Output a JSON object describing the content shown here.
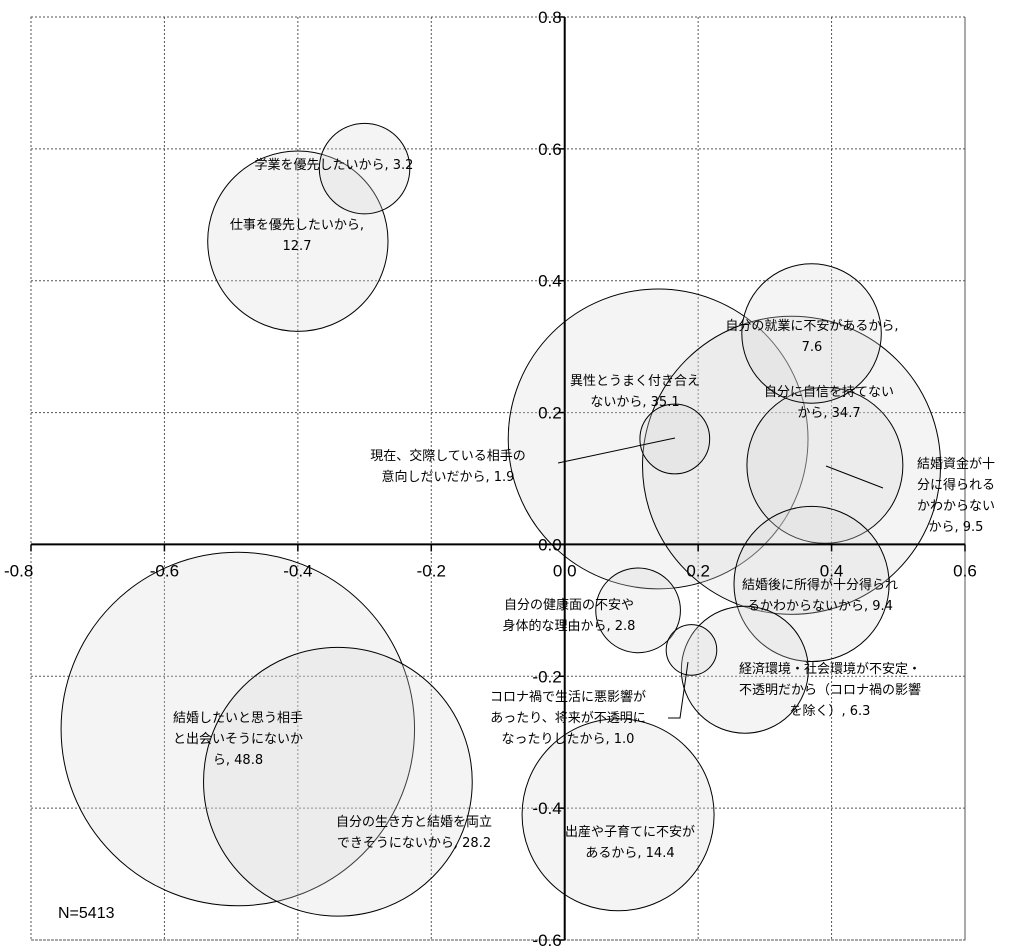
{
  "chart_data": {
    "type": "bubble",
    "note": "N=5413",
    "xlim": [
      -0.8,
      0.6
    ],
    "ylim": [
      -0.6,
      0.8
    ],
    "x_ticks": [
      "-0.8",
      "-0.6",
      "-0.4",
      "-0.2",
      "0.0",
      "0.2",
      "0.4",
      "0.6"
    ],
    "y_ticks": [
      "0.8",
      "0.6",
      "0.4",
      "0.2",
      "0.0",
      "-0.2",
      "-0.4",
      "-0.6"
    ],
    "grid": true,
    "points": [
      {
        "label_lines": [
          "学業を優先したいから, 3.2"
        ],
        "size": 3.2,
        "x": -0.3,
        "y": 0.57
      },
      {
        "label_lines": [
          "仕事を優先したいから,",
          "12.7"
        ],
        "size": 12.7,
        "x": -0.4,
        "y": 0.46
      },
      {
        "label_lines": [
          "自分の就業に不安があるから,",
          "7.6"
        ],
        "size": 7.6,
        "x": 0.37,
        "y": 0.32
      },
      {
        "label_lines": [
          "異性とうまく付き合え",
          "ないから, 35.1"
        ],
        "size": 35.1,
        "x": 0.14,
        "y": 0.16
      },
      {
        "label_lines": [
          "自分に自信を持てない",
          "から, 34.7"
        ],
        "size": 34.7,
        "x": 0.34,
        "y": 0.12
      },
      {
        "label_lines": [
          "現在、交際している相手の",
          "意向しだいだから, 1.9"
        ],
        "size": 1.9,
        "x": 0.165,
        "y": 0.16
      },
      {
        "label_lines": [
          "結婚資金が十",
          "分に得られる",
          "かわからない",
          "から, 9.5"
        ],
        "size": 9.5,
        "x": 0.39,
        "y": 0.12
      },
      {
        "label_lines": [
          "結婚後に所得が十分得られ",
          "るかわからないから, 9.4"
        ],
        "size": 9.4,
        "x": 0.37,
        "y": -0.06
      },
      {
        "label_lines": [
          "自分の健康面の不安や",
          "身体的な理由から, 2.8"
        ],
        "size": 2.8,
        "x": 0.11,
        "y": -0.1
      },
      {
        "label_lines": [
          "経済環境・社会環境が不安定・",
          "不透明だから（コロナ禍の影響",
          "を除く）, 6.3"
        ],
        "size": 6.3,
        "x": 0.27,
        "y": -0.19
      },
      {
        "label_lines": [
          "コロナ禍で生活に悪影響が",
          "あったり、将来が不透明に",
          "なったりしたから, 1.0"
        ],
        "size": 1.0,
        "x": 0.19,
        "y": -0.16
      },
      {
        "label_lines": [
          "結婚したいと思う相手",
          "と出会いそうにないか",
          "ら, 48.8"
        ],
        "size": 48.8,
        "x": -0.49,
        "y": -0.28
      },
      {
        "label_lines": [
          "自分の生き方と結婚を両立",
          "できそうにないから, 28.2"
        ],
        "size": 28.2,
        "x": -0.34,
        "y": -0.36
      },
      {
        "label_lines": [
          "出産や子育てに不安が",
          "あるから, 14.4"
        ],
        "size": 14.4,
        "x": 0.08,
        "y": -0.41
      }
    ]
  }
}
